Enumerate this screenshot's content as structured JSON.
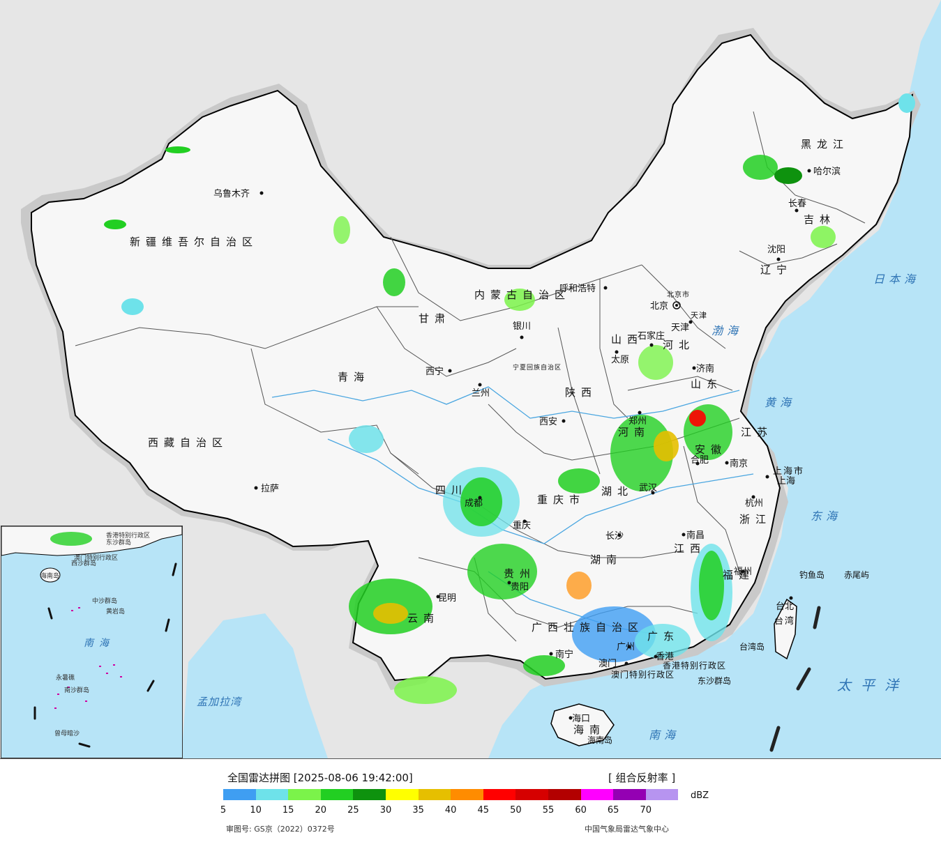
{
  "map": {
    "province_labels": [
      "新疆维吾尔自治区",
      "西藏自治区",
      "青海",
      "甘肃",
      "内蒙古自治区",
      "黑龙江",
      "吉林",
      "辽宁",
      "河北",
      "山西",
      "陕西",
      "宁夏回族自治区",
      "四川",
      "重庆市",
      "贵州",
      "云南",
      "广西壮族自治区",
      "广东",
      "湖南",
      "湖北",
      "河南",
      "山东",
      "江苏",
      "安徽",
      "浙江",
      "江西",
      "福建",
      "海南",
      "台湾",
      "上海市",
      "天津",
      "北京市",
      "香港特别行政区",
      "澳门特别行政区"
    ],
    "cities": [
      "乌鲁木齐",
      "拉萨",
      "西宁",
      "兰州",
      "银川",
      "呼和浩特",
      "北京",
      "天津",
      "石家庄",
      "太原",
      "济南",
      "郑州",
      "西安",
      "成都",
      "重庆",
      "贵阳",
      "昆明",
      "南宁",
      "广州",
      "香港",
      "澳门",
      "海口",
      "长沙",
      "武汉",
      "合肥",
      "南京",
      "上海",
      "杭州",
      "南昌",
      "福州",
      "台北",
      "沈阳",
      "长春",
      "哈尔滨"
    ],
    "sea_labels": [
      "日本海",
      "渤海",
      "黄海",
      "东海",
      "太平洋",
      "南海",
      "孟加拉湾"
    ],
    "islands": [
      "钓鱼岛",
      "赤尾屿",
      "台湾岛",
      "东沙群岛",
      "海南岛"
    ],
    "inset_labels": [
      "南海",
      "东沙群岛",
      "西沙群岛",
      "中沙群岛",
      "南沙群岛",
      "黄岩岛",
      "永暑礁",
      "曾母暗沙",
      "海南岛",
      "香港特别行政区",
      "澳门特别行政区"
    ]
  },
  "legend": {
    "title": "全国雷达拼图 [2025-08-06 19:42:00]",
    "product": "[ 组合反射率 ]",
    "unit": "dBZ",
    "ticks": [
      "5",
      "10",
      "15",
      "20",
      "25",
      "30",
      "35",
      "40",
      "45",
      "50",
      "55",
      "60",
      "65",
      "70"
    ],
    "colors": [
      "#3f9ef2",
      "#6ee2ea",
      "#7bf34a",
      "#22cf22",
      "#0e920e",
      "#ffff00",
      "#e6bf00",
      "#ff8c00",
      "#ff0000",
      "#d60000",
      "#b30000",
      "#ff00ff",
      "#9400b3",
      "#b794f0"
    ],
    "approval": "审图号: GS京（2022）0372号",
    "source": "中国气象局雷达气象中心"
  }
}
